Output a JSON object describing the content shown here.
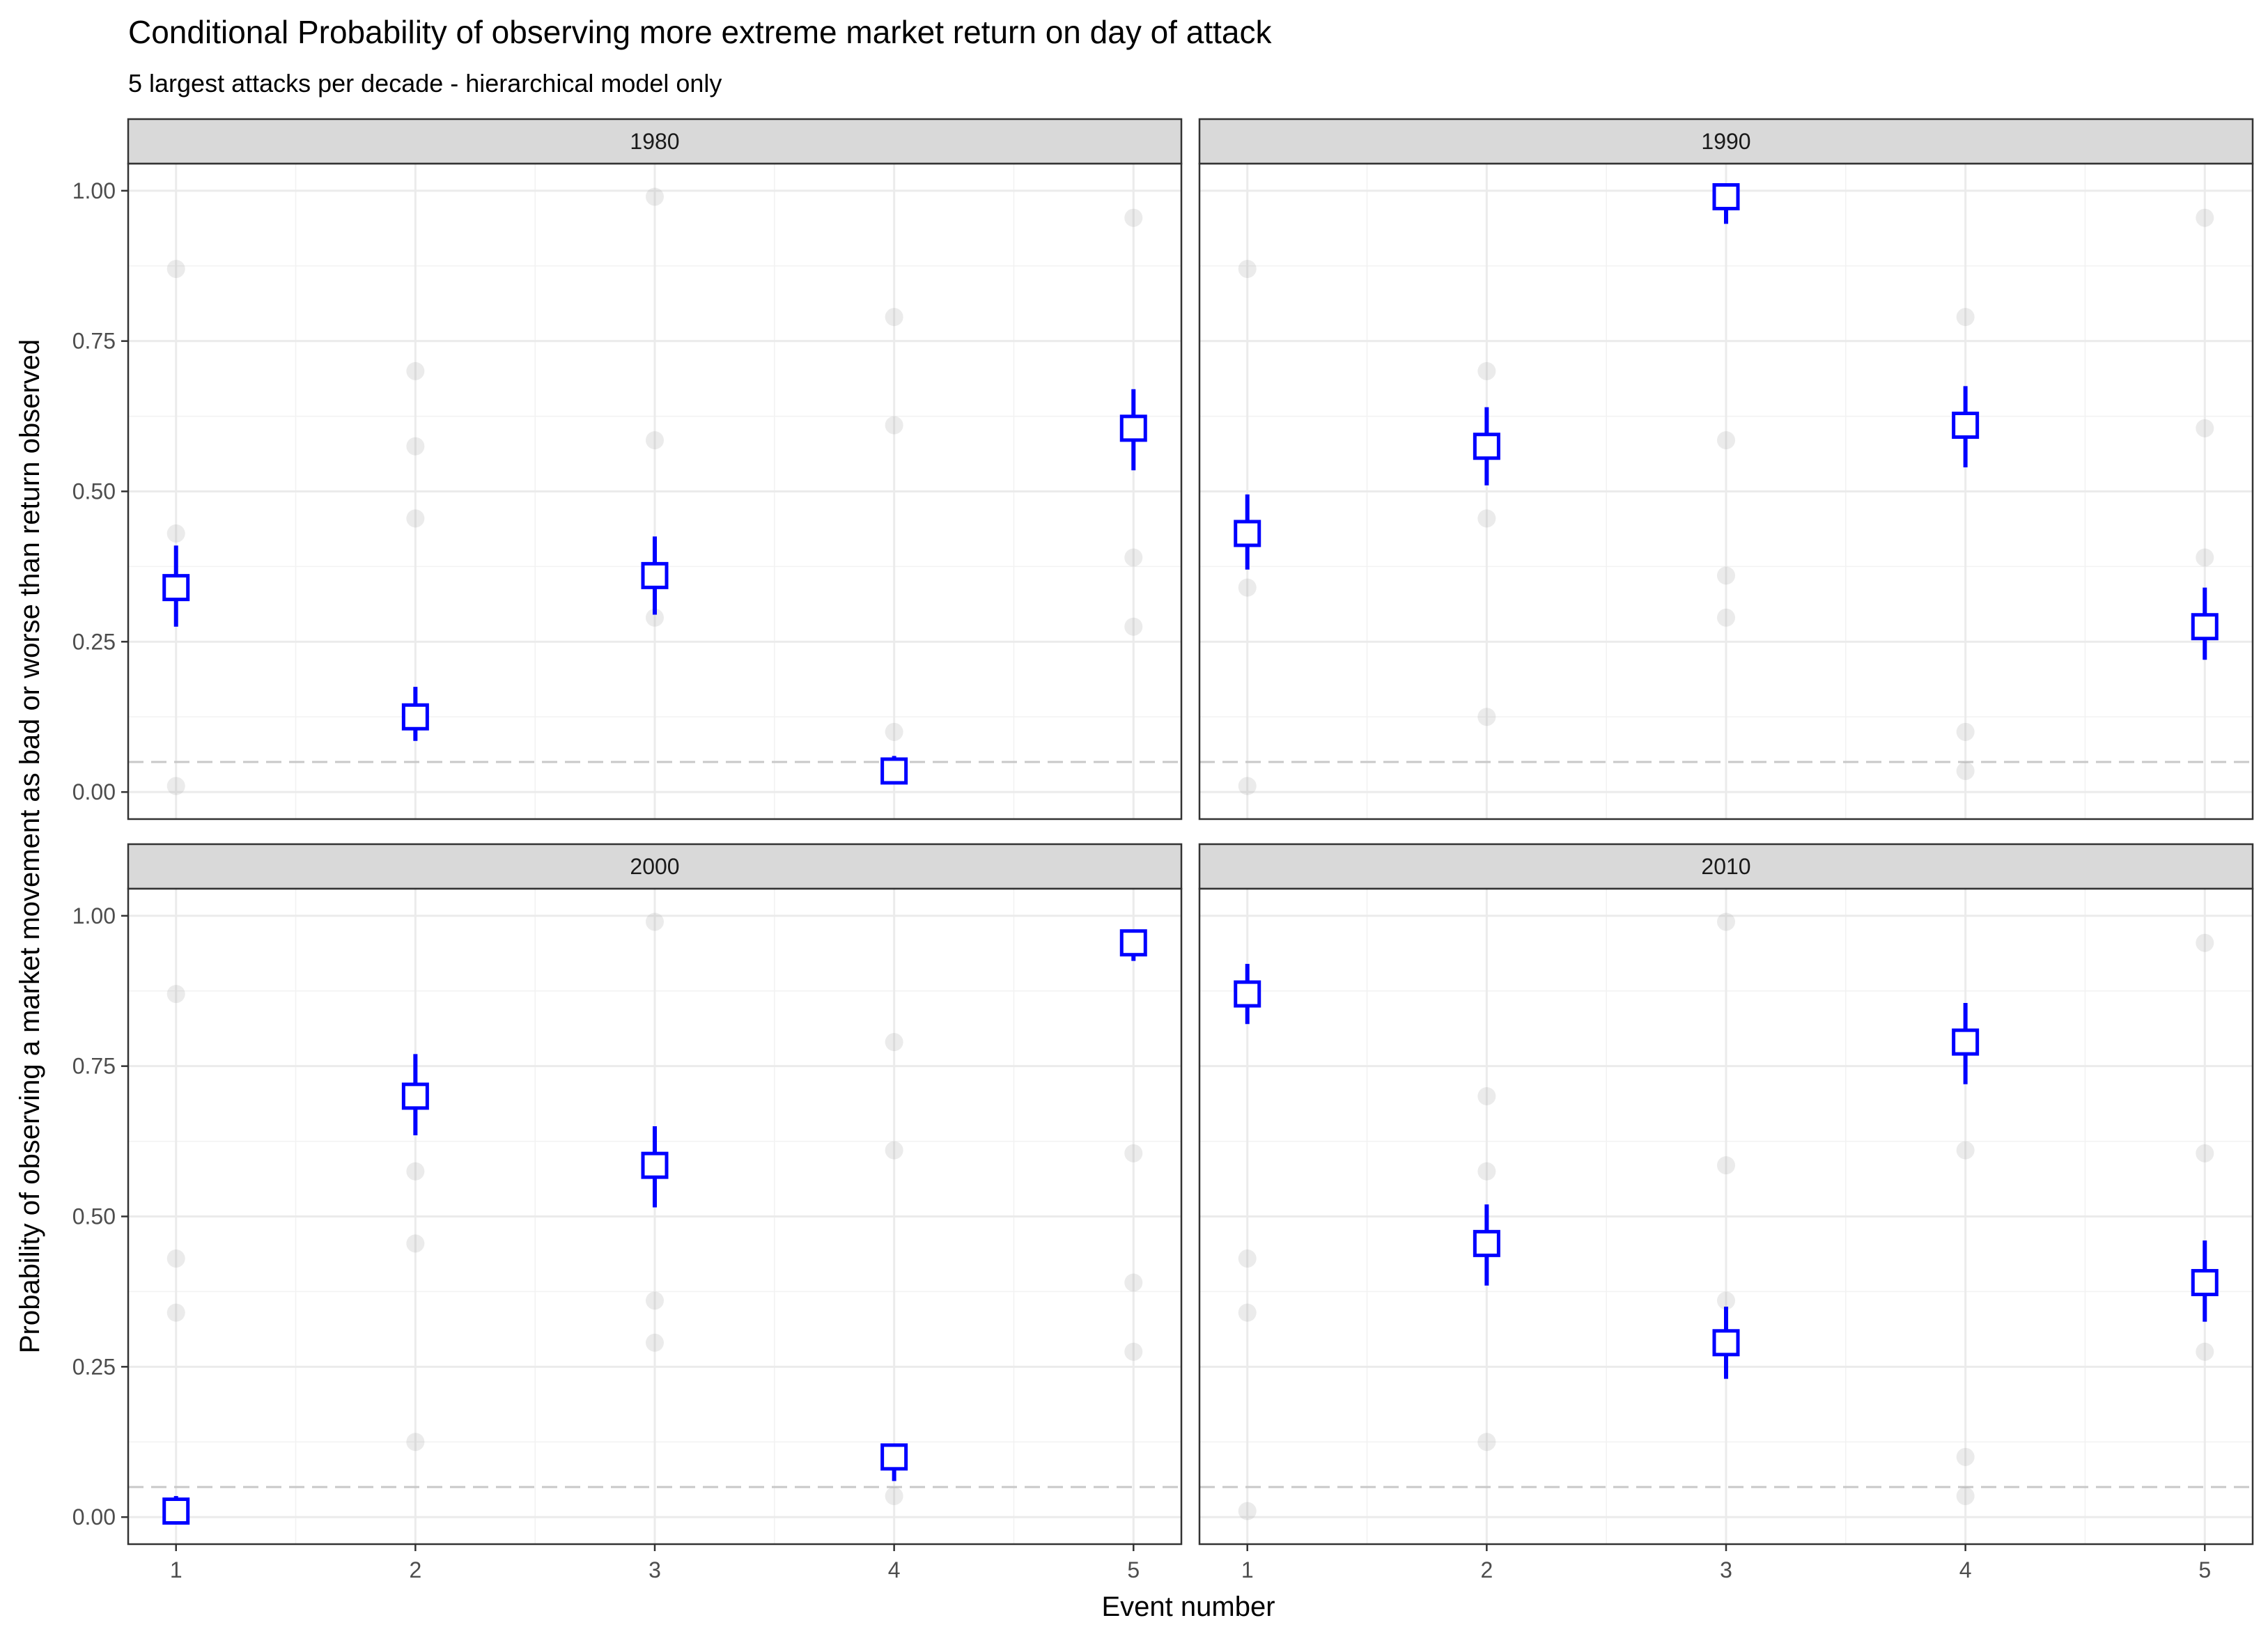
{
  "chart_data": {
    "type": "scatter",
    "title": "Conditional Probability of observing more extreme market return on day of attack",
    "subtitle": "5 largest attacks per decade - hierarchical model only",
    "xlabel": "Event number",
    "ylabel": "Probability of observing a market movement as bad or worse than return observed",
    "x_ticks": [
      "1",
      "2",
      "3",
      "4",
      "5"
    ],
    "y_ticks": [
      "0.00",
      "0.25",
      "0.50",
      "0.75",
      "1.00"
    ],
    "xlim": [
      0.8,
      5.2
    ],
    "ylim": [
      -0.045,
      1.045
    ],
    "reference_line": 0.05,
    "grid": true,
    "colors": {
      "estimate": "#0000ff",
      "background_points": "#d9d9d9",
      "strip_fill": "#d9d9d9",
      "reference_line": "#c8c8c8"
    },
    "background_points": [
      {
        "x": 1,
        "y": 0.87
      },
      {
        "x": 1,
        "y": 0.43
      },
      {
        "x": 1,
        "y": 0.34
      },
      {
        "x": 1,
        "y": 0.01
      },
      {
        "x": 2,
        "y": 0.7
      },
      {
        "x": 2,
        "y": 0.575
      },
      {
        "x": 2,
        "y": 0.455
      },
      {
        "x": 2,
        "y": 0.125
      },
      {
        "x": 3,
        "y": 0.99
      },
      {
        "x": 3,
        "y": 0.585
      },
      {
        "x": 3,
        "y": 0.36
      },
      {
        "x": 3,
        "y": 0.29
      },
      {
        "x": 4,
        "y": 0.79
      },
      {
        "x": 4,
        "y": 0.61
      },
      {
        "x": 4,
        "y": 0.1
      },
      {
        "x": 4,
        "y": 0.035
      },
      {
        "x": 5,
        "y": 0.955
      },
      {
        "x": 5,
        "y": 0.605
      },
      {
        "x": 5,
        "y": 0.39
      },
      {
        "x": 5,
        "y": 0.275
      }
    ],
    "panels": [
      {
        "label": "1980",
        "points": [
          {
            "x": 1,
            "y": 0.34,
            "lo": 0.275,
            "hi": 0.41
          },
          {
            "x": 2,
            "y": 0.125,
            "lo": 0.085,
            "hi": 0.175
          },
          {
            "x": 3,
            "y": 0.36,
            "lo": 0.295,
            "hi": 0.425
          },
          {
            "x": 4,
            "y": 0.035,
            "lo": 0.015,
            "hi": 0.06
          },
          {
            "x": 5,
            "y": 0.605,
            "lo": 0.535,
            "hi": 0.67
          }
        ]
      },
      {
        "label": "1990",
        "points": [
          {
            "x": 1,
            "y": 0.43,
            "lo": 0.37,
            "hi": 0.495
          },
          {
            "x": 2,
            "y": 0.575,
            "lo": 0.51,
            "hi": 0.64
          },
          {
            "x": 3,
            "y": 0.99,
            "lo": 0.945,
            "hi": 1.0
          },
          {
            "x": 4,
            "y": 0.61,
            "lo": 0.54,
            "hi": 0.675
          },
          {
            "x": 5,
            "y": 0.275,
            "lo": 0.22,
            "hi": 0.34
          }
        ]
      },
      {
        "label": "2000",
        "points": [
          {
            "x": 1,
            "y": 0.01,
            "lo": 0.005,
            "hi": 0.035
          },
          {
            "x": 2,
            "y": 0.7,
            "lo": 0.635,
            "hi": 0.77
          },
          {
            "x": 3,
            "y": 0.585,
            "lo": 0.515,
            "hi": 0.65
          },
          {
            "x": 4,
            "y": 0.1,
            "lo": 0.06,
            "hi": 0.12
          },
          {
            "x": 5,
            "y": 0.955,
            "lo": 0.925,
            "hi": 0.975
          }
        ]
      },
      {
        "label": "2010",
        "points": [
          {
            "x": 1,
            "y": 0.87,
            "lo": 0.82,
            "hi": 0.92
          },
          {
            "x": 2,
            "y": 0.455,
            "lo": 0.385,
            "hi": 0.52
          },
          {
            "x": 3,
            "y": 0.29,
            "lo": 0.23,
            "hi": 0.35
          },
          {
            "x": 4,
            "y": 0.79,
            "lo": 0.72,
            "hi": 0.855
          },
          {
            "x": 5,
            "y": 0.39,
            "lo": 0.325,
            "hi": 0.46
          }
        ]
      }
    ]
  }
}
